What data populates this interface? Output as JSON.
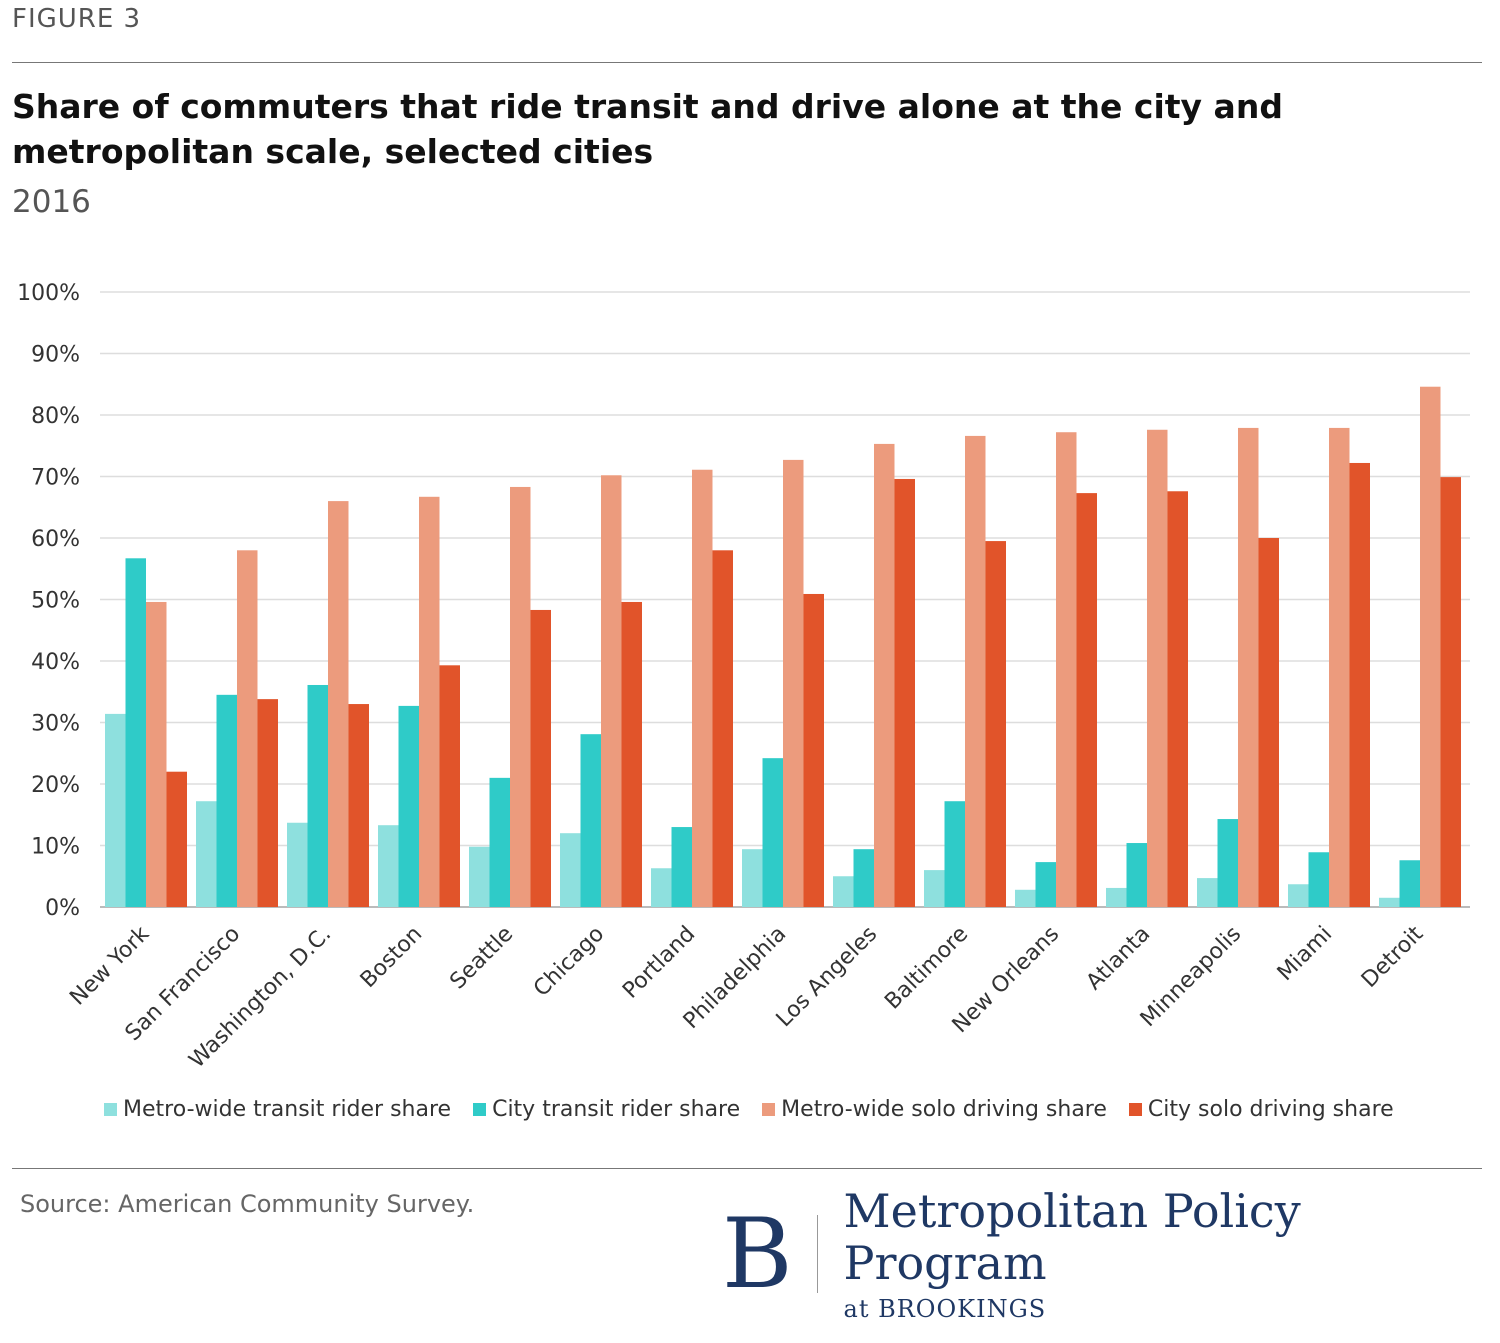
{
  "figure_label": "FIGURE 3",
  "title": "Share of commuters that ride transit and drive alone at the city and metropolitan scale, selected cities",
  "subtitle": "2016",
  "source": "Source: American Community Survey.",
  "logo": {
    "letter": "B",
    "name": "Metropolitan Policy Program",
    "sub": "at BROOKINGS"
  },
  "chart_data": {
    "type": "bar",
    "title": "Share of commuters that ride transit and drive alone at the city and metropolitan scale, selected cities",
    "ylim": [
      0,
      100
    ],
    "yticks": [
      "0%",
      "10%",
      "20%",
      "30%",
      "40%",
      "50%",
      "60%",
      "70%",
      "80%",
      "90%",
      "100%"
    ],
    "grid": true,
    "legend_placement": "bottom",
    "categories": [
      "New York",
      "San Francisco",
      "Washington, D.C.",
      "Boston",
      "Seattle",
      "Chicago",
      "Portland",
      "Philadelphia",
      "Los Angeles",
      "Baltimore",
      "New Orleans",
      "Atlanta",
      "Minneapolis",
      "Miami",
      "Detroit"
    ],
    "series": [
      {
        "name": "Metro-wide transit rider share",
        "color": "#8ee0de",
        "values": [
          31.4,
          17.2,
          13.7,
          13.3,
          9.8,
          12.0,
          6.3,
          9.4,
          5.0,
          6.0,
          2.8,
          3.1,
          4.7,
          3.7,
          1.5
        ]
      },
      {
        "name": "City transit rider share",
        "color": "#2fcbc8",
        "values": [
          56.7,
          34.5,
          36.1,
          32.7,
          21.0,
          28.1,
          13.0,
          24.2,
          9.4,
          17.2,
          7.3,
          10.4,
          14.3,
          8.9,
          7.6
        ]
      },
      {
        "name": "Metro-wide solo driving share",
        "color": "#ec9b7d",
        "values": [
          49.6,
          58.0,
          66.0,
          66.7,
          68.3,
          70.2,
          71.1,
          72.7,
          75.3,
          76.6,
          77.2,
          77.6,
          77.9,
          77.9,
          84.6
        ]
      },
      {
        "name": "City solo driving share",
        "color": "#e1542a",
        "values": [
          22.0,
          33.8,
          33.0,
          39.3,
          48.3,
          49.6,
          58.0,
          50.9,
          69.6,
          59.5,
          67.3,
          67.6,
          60.0,
          72.2,
          69.9
        ]
      }
    ]
  }
}
